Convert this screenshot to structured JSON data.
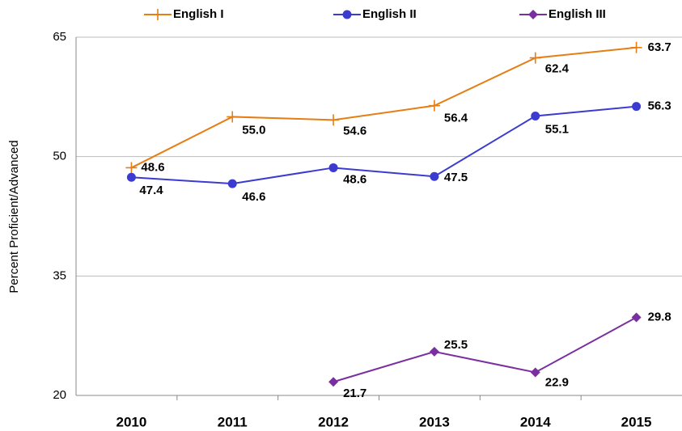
{
  "chart_data": {
    "type": "line",
    "y_label": "Percent  Proficient/Advanced",
    "categories": [
      "2010",
      "2011",
      "2012",
      "2013",
      "2014",
      "2015"
    ],
    "series": [
      {
        "name": "English I",
        "color": "#e57e14",
        "marker": "cross",
        "values": [
          48.6,
          55.0,
          54.6,
          56.4,
          62.4,
          63.7
        ],
        "value_labels": [
          "48.6",
          "55.0",
          "54.6",
          "56.4",
          "62.4",
          "63.7"
        ]
      },
      {
        "name": "English II",
        "color": "#3b3bd1",
        "marker": "circle",
        "values": [
          47.4,
          46.6,
          48.6,
          47.5,
          55.1,
          56.3
        ],
        "value_labels": [
          "47.4",
          "46.6",
          "48.6",
          "47.5",
          "55.1",
          "56.3"
        ]
      },
      {
        "name": "English III",
        "color": "#7a2fa0",
        "marker": "diamond",
        "values": [
          null,
          null,
          21.7,
          25.5,
          22.9,
          29.8
        ],
        "value_labels": [
          null,
          null,
          "21.7",
          "25.5",
          "22.9",
          "29.8"
        ]
      }
    ],
    "ylim": [
      20,
      65
    ],
    "yticks": [
      20,
      35,
      50,
      65
    ],
    "grid": true,
    "legend": "top"
  }
}
